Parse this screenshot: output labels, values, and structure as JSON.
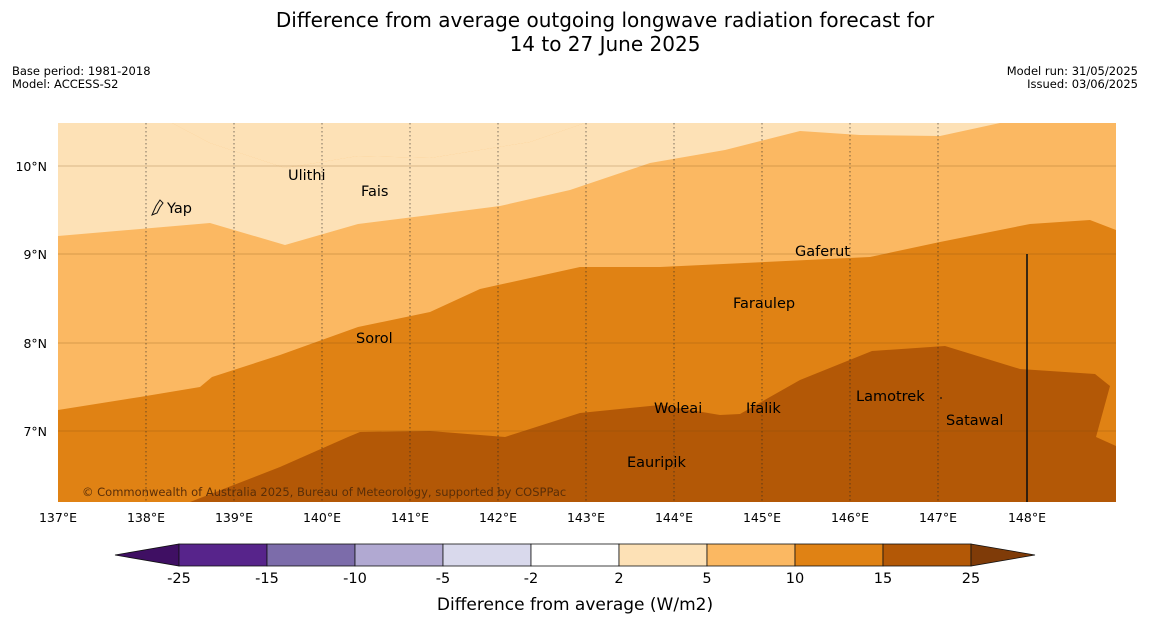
{
  "title": {
    "line1": "Difference from average outgoing longwave radiation forecast for",
    "line2": "14 to 27 June 2025"
  },
  "meta": {
    "base_period": "Base period: 1981-2018",
    "model": "Model: ACCESS-S2",
    "model_run": "Model run: 31/05/2025",
    "issued": "Issued: 03/06/2025"
  },
  "copyright": "© Commonwealth of Australia 2025, Bureau of Meteorology, supported by COSPPac",
  "map": {
    "x_ticks": [
      "137°E",
      "138°E",
      "139°E",
      "140°E",
      "141°E",
      "142°E",
      "143°E",
      "144°E",
      "145°E",
      "146°E",
      "147°E",
      "148°E"
    ],
    "y_ticks": [
      "10°N",
      "9°N",
      "8°N",
      "7°N"
    ],
    "places": [
      {
        "name": "Ulithi"
      },
      {
        "name": "Fais"
      },
      {
        "name": "Yap"
      },
      {
        "name": "Gaferut"
      },
      {
        "name": "Faraulep"
      },
      {
        "name": "Sorol"
      },
      {
        "name": "Woleai"
      },
      {
        "name": "Ifalik"
      },
      {
        "name": "Lamotrek"
      },
      {
        "name": "Satawal"
      },
      {
        "name": "Eauripik"
      }
    ]
  },
  "colorbar": {
    "label": "Difference from average (W/m2)",
    "ticks": [
      "-25",
      "-15",
      "-10",
      "-5",
      "-2",
      "2",
      "5",
      "10",
      "15",
      "25"
    ],
    "colors": [
      "#3f0f63",
      "#57248b",
      "#7c6caa",
      "#b1a9d2",
      "#d9d9ec",
      "#ffffff",
      "#fde1b6",
      "#fbb862",
      "#e08214",
      "#b35806",
      "#7f3b08"
    ]
  }
}
